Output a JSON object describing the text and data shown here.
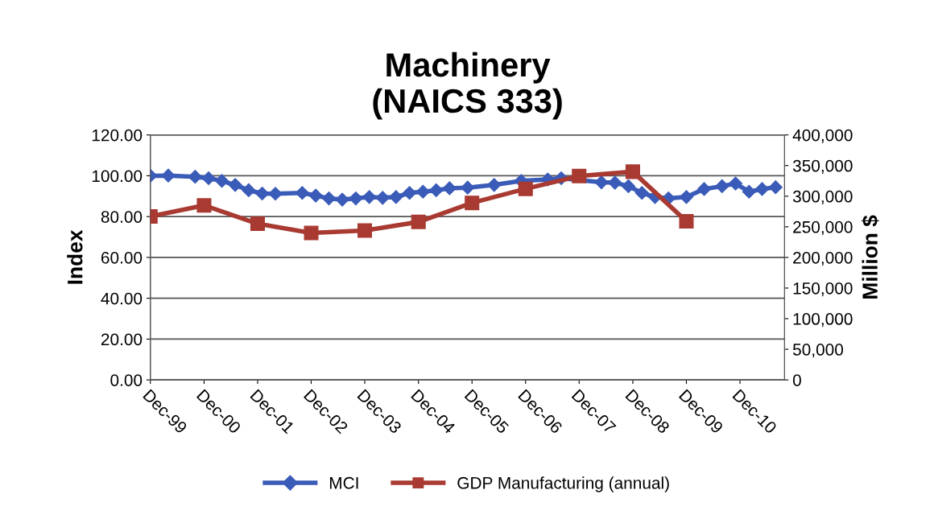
{
  "chart_data": {
    "type": "line",
    "title": "Machinery\n(NAICS 333)",
    "ylabel": "Index",
    "y2label": "Million $",
    "xlim": [
      "1999-12",
      "2011-10"
    ],
    "xticks": [
      {
        "value": "1999-12",
        "label": "Dec-99"
      },
      {
        "value": "2000-12",
        "label": "Dec-00"
      },
      {
        "value": "2001-12",
        "label": "Dec-01"
      },
      {
        "value": "2002-12",
        "label": "Dec-02"
      },
      {
        "value": "2003-12",
        "label": "Dec-03"
      },
      {
        "value": "2004-12",
        "label": "Dec-04"
      },
      {
        "value": "2005-12",
        "label": "Dec-05"
      },
      {
        "value": "2006-12",
        "label": "Dec-06"
      },
      {
        "value": "2007-12",
        "label": "Dec-07"
      },
      {
        "value": "2008-12",
        "label": "Dec-08"
      },
      {
        "value": "2009-12",
        "label": "Dec-09"
      },
      {
        "value": "2010-12",
        "label": "Dec-10"
      }
    ],
    "ylim": [
      0,
      120
    ],
    "yticks": [
      {
        "value": 0,
        "label": "0.00"
      },
      {
        "value": 20,
        "label": "20.00"
      },
      {
        "value": 40,
        "label": "40.00"
      },
      {
        "value": 60,
        "label": "60.00"
      },
      {
        "value": 80,
        "label": "80.00"
      },
      {
        "value": 100,
        "label": "100.00"
      },
      {
        "value": 120,
        "label": "120.00"
      }
    ],
    "y2lim": [
      0,
      400000
    ],
    "y2ticks": [
      0,
      {
        "value": 50000,
        "label": "50,000"
      },
      {
        "value": 100000,
        "label": "100,000"
      },
      {
        "value": 150000,
        "label": "150,000"
      },
      {
        "value": 200000,
        "label": "200,000"
      },
      {
        "value": 250000,
        "label": "250,000"
      },
      {
        "value": 300000,
        "label": "300,000"
      },
      {
        "value": 350000,
        "label": "350,000"
      },
      {
        "value": 400000,
        "label": "400,000"
      }
    ],
    "grid": "y",
    "legend": "bottom",
    "series": [
      {
        "name": "MCI",
        "color": "#3a5bb8",
        "marker": "diamond",
        "x": [
          "1999-12",
          "2000-04",
          "2000-10",
          "2001-01",
          "2001-04",
          "2001-07",
          "2001-10",
          "2002-01",
          "2002-04",
          "2002-10",
          "2003-01",
          "2003-04",
          "2003-07",
          "2003-10",
          "2004-01",
          "2004-04",
          "2004-07",
          "2004-10",
          "2005-01",
          "2005-04",
          "2005-07",
          "2005-11",
          "2006-05",
          "2006-11",
          "2007-05",
          "2007-08",
          "2008-05",
          "2008-08",
          "2008-11",
          "2009-02",
          "2009-05",
          "2009-08",
          "2009-12",
          "2010-04",
          "2010-08",
          "2010-11",
          "2011-02",
          "2011-05",
          "2011-08"
        ],
        "values": [
          100.0,
          100.1,
          99.5,
          98.8,
          97.5,
          95.5,
          92.9,
          91.3,
          91.2,
          91.6,
          90.3,
          88.9,
          88.3,
          88.9,
          89.6,
          89.2,
          89.6,
          91.6,
          92.2,
          92.9,
          93.9,
          94.2,
          95.5,
          97.5,
          98.2,
          98.8,
          96.8,
          96.6,
          94.9,
          91.6,
          89.6,
          88.9,
          89.6,
          93.5,
          94.9,
          96.2,
          92.2,
          93.5,
          94.4
        ]
      },
      {
        "name": "GDP Manufacturing (annual)",
        "color": "#a83a32",
        "marker": "square",
        "axis": "y2",
        "x": [
          "1999-12",
          "2000-12",
          "2001-12",
          "2002-12",
          "2003-12",
          "2004-12",
          "2005-12",
          "2006-12",
          "2007-12",
          "2008-12",
          "2009-12"
        ],
        "values": [
          267000,
          285000,
          255000,
          240000,
          244000,
          258000,
          289000,
          312000,
          333000,
          340000,
          259000
        ]
      }
    ]
  }
}
